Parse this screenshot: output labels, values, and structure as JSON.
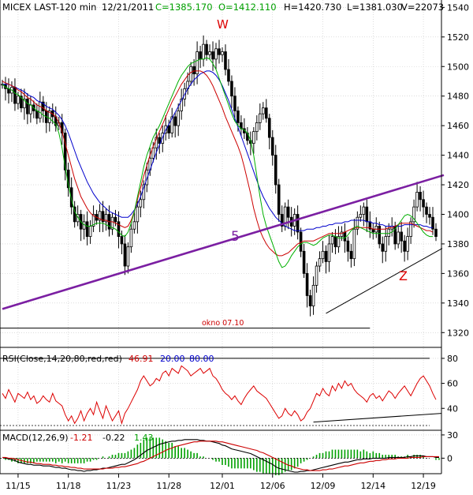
{
  "header": {
    "symbol": "MICEX LAST-120 min",
    "date": "12/21/2011",
    "close": "C=1385.170",
    "open": "O=1412.110",
    "high": "H=1420.730",
    "low": "L=1381.030",
    "volume": "V=22073"
  },
  "annotations": {
    "w": "W",
    "five": "5",
    "z": "Z",
    "okno": "okno 07.10"
  },
  "rsi_header": {
    "label": "RSI(Close,14,20,80,red,red)",
    "value": "46.91",
    "low": "20.00",
    "high": "80.00"
  },
  "macd_header": {
    "label": "MACD(12,26,9)",
    "macd": "-1.21",
    "signal": "-0.22",
    "hist": "1.43"
  },
  "colors": {
    "price": "#000000",
    "ma_fast": "#00b000",
    "ma_mid": "#cc0000",
    "ma_slow": "#0000cc",
    "trendline": "#7b1fa2",
    "rsi": "#dd0000",
    "macd_hist": "#00a000",
    "annotation_red": "#dd0000"
  },
  "chart_data": [
    {
      "type": "candlestick",
      "title": "MICEX LAST-120 min",
      "x_ticks": [
        "11/15",
        "11/18",
        "11/23",
        "11/28",
        "12/01",
        "12/06",
        "12/09",
        "12/14",
        "12/19"
      ],
      "y_ticks": [
        1320,
        1340,
        1360,
        1380,
        1400,
        1420,
        1440,
        1460,
        1480,
        1500,
        1520,
        1540
      ],
      "ylim": [
        1310,
        1545
      ],
      "grid": true,
      "close_series": [
        1488,
        1485,
        1482,
        1486,
        1475,
        1480,
        1472,
        1478,
        1468,
        1474,
        1470,
        1465,
        1476,
        1470,
        1462,
        1470,
        1466,
        1460,
        1462,
        1455,
        1430,
        1418,
        1405,
        1395,
        1400,
        1390,
        1395,
        1385,
        1392,
        1400,
        1396,
        1402,
        1395,
        1400,
        1390,
        1398,
        1395,
        1385,
        1380,
        1365,
        1378,
        1390,
        1395,
        1405,
        1410,
        1420,
        1430,
        1438,
        1445,
        1452,
        1448,
        1455,
        1460,
        1455,
        1466,
        1460,
        1470,
        1478,
        1485,
        1490,
        1500,
        1495,
        1510,
        1505,
        1515,
        1508,
        1510,
        1505,
        1512,
        1508,
        1510,
        1498,
        1490,
        1480,
        1470,
        1462,
        1458,
        1455,
        1450,
        1448,
        1456,
        1462,
        1468,
        1472,
        1465,
        1452,
        1440,
        1420,
        1400,
        1392,
        1405,
        1398,
        1392,
        1400,
        1388,
        1375,
        1360,
        1345,
        1338,
        1352,
        1365,
        1370,
        1375,
        1368,
        1380,
        1385,
        1378,
        1385,
        1388,
        1382,
        1375,
        1370,
        1390,
        1398,
        1400,
        1405,
        1395,
        1390,
        1388,
        1392,
        1380,
        1375,
        1385,
        1390,
        1392,
        1380,
        1388,
        1382,
        1375,
        1385,
        1395,
        1405,
        1415,
        1410,
        1405,
        1400,
        1398,
        1390,
        1385
      ],
      "ma_fast": [
        1488,
        1486,
        1485,
        1484,
        1482,
        1481,
        1479,
        1477,
        1475,
        1474,
        1472,
        1470,
        1469,
        1467,
        1466,
        1465,
        1463,
        1461,
        1455,
        1445,
        1432,
        1420,
        1410,
        1402,
        1398,
        1395,
        1393,
        1392,
        1392,
        1393,
        1394,
        1394,
        1394,
        1393,
        1392,
        1391,
        1390,
        1388,
        1386,
        1385,
        1388,
        1394,
        1402,
        1412,
        1422,
        1432,
        1440,
        1446,
        1452,
        1456,
        1460,
        1465,
        1470,
        1475,
        1480,
        1485,
        1490,
        1494,
        1497,
        1500,
        1502,
        1503,
        1504,
        1505,
        1505,
        1506,
        1505,
        1502,
        1498,
        1492,
        1486,
        1480,
        1474,
        1468,
        1463,
        1460,
        1458,
        1457,
        1455,
        1450,
        1440,
        1426,
        1412,
        1400,
        1392,
        1386,
        1380,
        1374,
        1368,
        1364,
        1365,
        1368,
        1372,
        1375,
        1378,
        1380,
        1381,
        1381,
        1380,
        1379,
        1380,
        1382,
        1384,
        1385,
        1386,
        1386,
        1385,
        1384,
        1384,
        1384,
        1386,
        1389,
        1391,
        1392,
        1391,
        1390,
        1389,
        1388,
        1387,
        1387,
        1387,
        1387,
        1387,
        1387,
        1388,
        1390,
        1393,
        1396,
        1399,
        1400,
        1399,
        1397,
        1394,
        1391,
        1388,
        1386,
        1385,
        1385
      ],
      "ma_mid": [
        1490,
        1489,
        1488,
        1487,
        1486,
        1484,
        1483,
        1481,
        1479,
        1478,
        1476,
        1474,
        1473,
        1472,
        1470,
        1469,
        1468,
        1466,
        1462,
        1456,
        1448,
        1440,
        1432,
        1424,
        1418,
        1412,
        1408,
        1404,
        1401,
        1399,
        1398,
        1397,
        1396,
        1396,
        1395,
        1395,
        1394,
        1393,
        1392,
        1391,
        1392,
        1396,
        1402,
        1410,
        1418,
        1426,
        1433,
        1440,
        1446,
        1451,
        1456,
        1461,
        1466,
        1471,
        1476,
        1480,
        1484,
        1488,
        1491,
        1494,
        1496,
        1497,
        1497,
        1497,
        1496,
        1494,
        1491,
        1487,
        1482,
        1477,
        1472,
        1466,
        1461,
        1456,
        1451,
        1446,
        1440,
        1432,
        1423,
        1414,
        1404,
        1396,
        1389,
        1384,
        1380,
        1377,
        1375,
        1373,
        1372,
        1372,
        1373,
        1374,
        1376,
        1378,
        1380,
        1381,
        1382,
        1382,
        1382,
        1382,
        1383,
        1384,
        1385,
        1386,
        1387,
        1387,
        1387,
        1387,
        1387,
        1388,
        1389,
        1390,
        1391,
        1391,
        1391,
        1391,
        1391,
        1391,
        1390,
        1390,
        1390,
        1390,
        1390,
        1391,
        1391,
        1392,
        1393,
        1394,
        1394,
        1394,
        1394,
        1393,
        1392,
        1391,
        1390,
        1389,
        1389,
        1388
      ],
      "ma_slow": [
        1488,
        1488,
        1488,
        1487,
        1486,
        1485,
        1484,
        1483,
        1481,
        1480,
        1479,
        1477,
        1476,
        1475,
        1473,
        1472,
        1471,
        1469,
        1467,
        1464,
        1460,
        1455,
        1449,
        1443,
        1437,
        1432,
        1427,
        1422,
        1418,
        1414,
        1411,
        1408,
        1406,
        1404,
        1402,
        1401,
        1400,
        1399,
        1398,
        1398,
        1398,
        1400,
        1403,
        1407,
        1412,
        1418,
        1424,
        1430,
        1436,
        1442,
        1447,
        1452,
        1457,
        1461,
        1465,
        1469,
        1473,
        1477,
        1481,
        1485,
        1488,
        1491,
        1493,
        1495,
        1496,
        1497,
        1497,
        1496,
        1494,
        1491,
        1487,
        1482,
        1477,
        1471,
        1465,
        1459,
        1453,
        1447,
        1441,
        1435,
        1429,
        1423,
        1417,
        1412,
        1408,
        1404,
        1401,
        1398,
        1396,
        1394,
        1392,
        1391,
        1390,
        1389,
        1389,
        1389,
        1389,
        1390,
        1390,
        1390,
        1391,
        1391,
        1392,
        1392,
        1393,
        1393,
        1394,
        1394,
        1394,
        1395,
        1395,
        1396,
        1396,
        1396,
        1396,
        1396,
        1395,
        1395,
        1394,
        1394,
        1393,
        1393,
        1392,
        1392,
        1392,
        1392,
        1392,
        1392,
        1393,
        1393,
        1393,
        1393,
        1393,
        1393,
        1392,
        1392,
        1391,
        1391
      ],
      "trendline_5": {
        "label": "5",
        "from": [
          0,
          1336
        ],
        "to": [
          139,
          1426
        ]
      },
      "trendline_support": {
        "from": [
          103,
          1333
        ],
        "to": [
          139,
          1377
        ]
      },
      "okno_level": 1323
    },
    {
      "type": "line",
      "title": "RSI(Close,14,20,80,red,red)",
      "y_ticks": [
        40,
        60,
        80
      ],
      "ylim": [
        25,
        85
      ],
      "levels": [
        20,
        80
      ],
      "values": [
        52,
        48,
        55,
        50,
        45,
        52,
        50,
        48,
        53,
        47,
        50,
        44,
        46,
        50,
        47,
        45,
        52,
        46,
        44,
        42,
        35,
        30,
        34,
        28,
        32,
        38,
        30,
        36,
        40,
        35,
        45,
        38,
        32,
        42,
        36,
        30,
        34,
        38,
        28,
        36,
        40,
        45,
        50,
        55,
        62,
        66,
        62,
        58,
        60,
        64,
        62,
        68,
        70,
        66,
        72,
        70,
        68,
        74,
        72,
        70,
        66,
        68,
        70,
        72,
        68,
        70,
        72,
        66,
        64,
        60,
        55,
        52,
        50,
        47,
        50,
        46,
        43,
        48,
        52,
        55,
        58,
        54,
        52,
        50,
        48,
        44,
        40,
        36,
        32,
        34,
        40,
        36,
        34,
        38,
        35,
        30,
        32,
        37,
        40,
        46,
        52,
        50,
        56,
        52,
        50,
        58,
        54,
        60,
        56,
        62,
        58,
        60,
        55,
        52,
        50,
        48,
        45,
        50,
        52,
        48,
        50,
        46,
        50,
        54,
        52,
        48,
        52,
        55,
        58,
        54,
        50,
        55,
        60,
        64,
        66,
        62,
        58,
        52,
        47
      ]
    },
    {
      "type": "bar",
      "title": "MACD(12,26,9)",
      "y_ticks": [
        0,
        30
      ],
      "ylim": [
        -20,
        35
      ],
      "values": [
        1,
        0,
        -1,
        -2,
        -3,
        -5,
        -6,
        -7,
        -8,
        -8,
        -9,
        -9,
        -9,
        -10,
        -10,
        -10,
        -11,
        -12,
        -12,
        -13,
        -13,
        -14,
        -15,
        -15,
        -16,
        -16,
        -17,
        -16,
        -16,
        -15,
        -15,
        -14,
        -13,
        -13,
        -12,
        -11,
        -10,
        -9,
        -8,
        -8,
        -6,
        -4,
        -2,
        1,
        4,
        7,
        10,
        12,
        14,
        16,
        18,
        19,
        20,
        21,
        22,
        22,
        23,
        23,
        24,
        24,
        24,
        24,
        24,
        23,
        23,
        22,
        22,
        21,
        20,
        19,
        17,
        16,
        14,
        12,
        11,
        10,
        9,
        8,
        7,
        6,
        4,
        2,
        0,
        -2,
        -4,
        -6,
        -8,
        -11,
        -13,
        -14,
        -15,
        -16,
        -17,
        -18,
        -18,
        -17,
        -17,
        -16,
        -16,
        -15,
        -14,
        -13,
        -12,
        -11,
        -10,
        -9,
        -8,
        -7,
        -6,
        -5,
        -5,
        -4,
        -3,
        -2,
        -2,
        -1,
        -1,
        -1,
        0,
        0,
        0,
        0,
        0,
        1,
        1,
        1,
        1,
        1,
        1,
        2,
        2,
        3,
        3,
        3,
        3,
        2,
        2,
        2,
        1,
        1
      ],
      "signal": [
        1,
        1,
        0,
        0,
        -1,
        -2,
        -3,
        -4,
        -5,
        -5,
        -6,
        -7,
        -7,
        -8,
        -8,
        -8,
        -9,
        -9,
        -10,
        -10,
        -11,
        -11,
        -12,
        -12,
        -13,
        -13,
        -14,
        -14,
        -14,
        -14,
        -14,
        -14,
        -14,
        -13,
        -13,
        -13,
        -12,
        -12,
        -11,
        -11,
        -10,
        -9,
        -8,
        -7,
        -5,
        -4,
        -2,
        0,
        2,
        4,
        6,
        8,
        10,
        12,
        13,
        15,
        16,
        17,
        18,
        19,
        20,
        21,
        21,
        22,
        22,
        22,
        22,
        22,
        22,
        21,
        21,
        20,
        19,
        18,
        17,
        16,
        15,
        14,
        13,
        12,
        11,
        10,
        8,
        7,
        5,
        3,
        1,
        -1,
        -3,
        -5,
        -7,
        -9,
        -10,
        -12,
        -13,
        -14,
        -15,
        -15,
        -16,
        -16,
        -16,
        -16,
        -15,
        -15,
        -14,
        -14,
        -13,
        -12,
        -11,
        -10,
        -10,
        -9,
        -8,
        -7,
        -6,
        -6,
        -5,
        -4,
        -4,
        -3,
        -3,
        -2,
        -2,
        -1,
        -1,
        -1,
        0,
        0,
        0,
        0,
        1,
        1,
        1,
        1,
        2,
        2,
        2,
        2,
        2,
        2
      ]
    }
  ]
}
